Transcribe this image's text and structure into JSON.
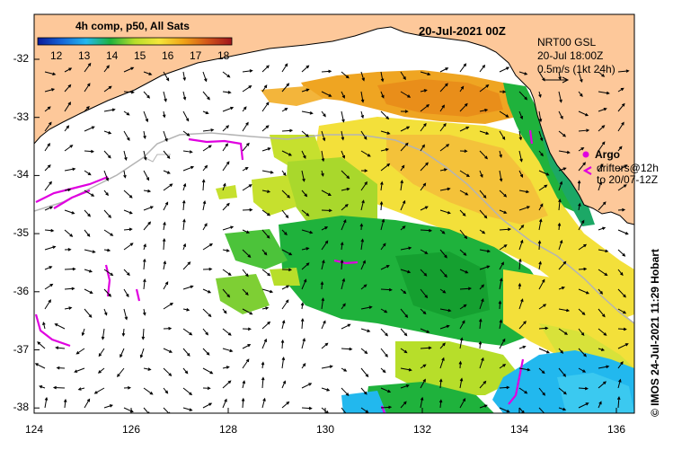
{
  "title": "20-Jul-2021 00Z",
  "colorbar": {
    "label": "4h comp, p50, All Sats",
    "ticks": [
      "12",
      "13",
      "14",
      "15",
      "16",
      "17",
      "18"
    ],
    "colors": [
      "#0a1a9a",
      "#1565d8",
      "#22b8ee",
      "#1fb23c",
      "#b7de2a",
      "#f5e63a",
      "#f0a418",
      "#d2561a",
      "#a0141c"
    ]
  },
  "current_info": {
    "model": "NRT00 GSL",
    "time": "20-Jul 18:00Z",
    "scale_label": "0.5m/s (1kt 24h)"
  },
  "legend": {
    "argo_label": "Argo",
    "drifters_line1": "drifters@12h",
    "drifters_line2": "to 20/07-12Z"
  },
  "axes": {
    "lat_labels": [
      "-32",
      "-33",
      "-34",
      "-35",
      "-36",
      "-37",
      "-38"
    ],
    "lon_labels": [
      "124",
      "126",
      "128",
      "130",
      "132",
      "134",
      "136"
    ]
  },
  "credit": "© IMOS 24-Jul-2021 11:29 Hobart",
  "colors": {
    "land": "#fdc89a",
    "coast": "#000000",
    "drifter": "#e000e0",
    "bathymetry": "#b4b4b4"
  }
}
